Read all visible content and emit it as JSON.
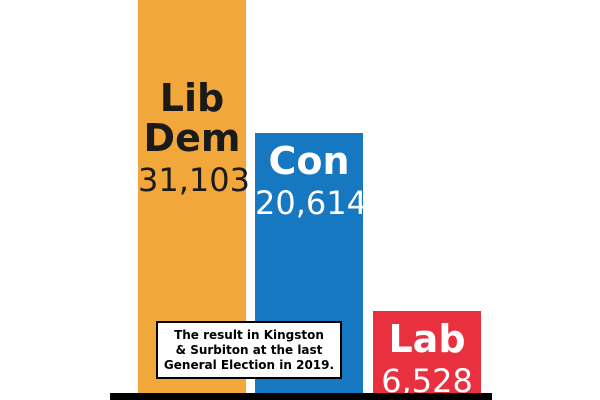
{
  "chart_data": {
    "type": "bar",
    "categories": [
      "Lib Dem",
      "Con",
      "Lab"
    ],
    "values": [
      31103,
      20614,
      6528
    ],
    "value_labels": [
      "31,103",
      "20,614",
      "6,528"
    ],
    "colors": [
      "#f2a73b",
      "#1778c2",
      "#e8303f"
    ],
    "label_colors": [
      "#1a1a1a",
      "#ffffff",
      "#ffffff"
    ],
    "annotation": "The result in Kingston\n& Surbiton at the last\nGeneral Election in 2019.",
    "title": "",
    "xlabel": "",
    "ylabel": "",
    "ylim": [
      0,
      31103
    ],
    "grid": false,
    "legend": "none"
  }
}
